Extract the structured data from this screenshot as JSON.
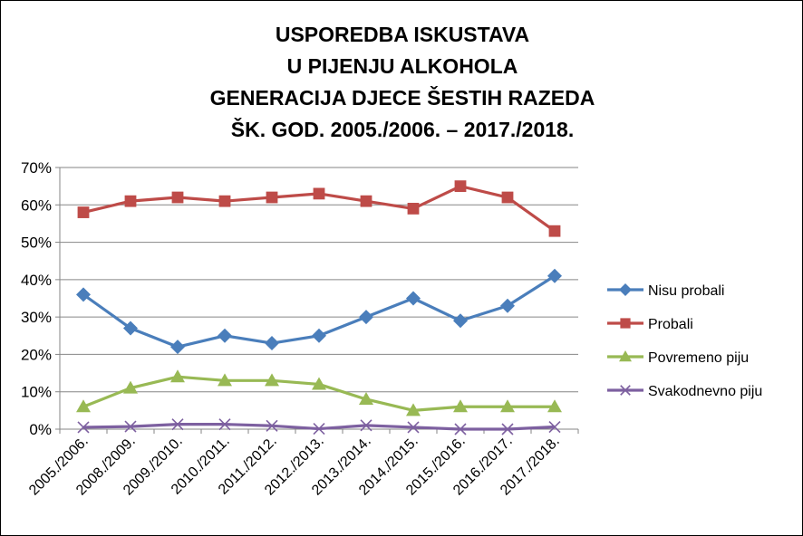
{
  "chart_data": {
    "type": "line",
    "title": [
      "USPOREDBA ISKUSTAVA",
      "U PIJENJU ALKOHOLA",
      "GENERACIJA DJECE ŠESTIH RAZEDA",
      "ŠK. GOD. 2005./2006. – 2017./2018."
    ],
    "categories": [
      "2005./2006.",
      "2008./2009.",
      "2009./2010.",
      "2010./2011.",
      "2011./2012.",
      "2012./2013.",
      "2013./2014.",
      "2014./2015.",
      "2015./2016.",
      "2016./2017.",
      "2017./2018."
    ],
    "yticks": [
      "0%",
      "10%",
      "20%",
      "30%",
      "40%",
      "50%",
      "60%",
      "70%"
    ],
    "ylim": [
      0,
      70
    ],
    "grid": true,
    "legend_position": "right",
    "series": [
      {
        "name": "Nisu probali",
        "color": "#4a7ebb",
        "marker": "diamond",
        "values": [
          36,
          27,
          22,
          25,
          23,
          25,
          30,
          35,
          29,
          33,
          41
        ]
      },
      {
        "name": "Probali",
        "color": "#be4b48",
        "marker": "square",
        "values": [
          58,
          61,
          62,
          61,
          62,
          63,
          61,
          59,
          65,
          62,
          53
        ]
      },
      {
        "name": "Povremeno piju",
        "color": "#98b954",
        "marker": "triangle",
        "values": [
          6,
          11,
          14,
          13,
          13,
          12,
          8,
          5,
          6,
          6,
          6
        ]
      },
      {
        "name": "Svakodnevno piju",
        "color": "#7d60a0",
        "marker": "x",
        "values": [
          0.5,
          0.7,
          1.3,
          1.3,
          0.9,
          0.1,
          1,
          0.5,
          0,
          0,
          0.6
        ]
      }
    ]
  }
}
